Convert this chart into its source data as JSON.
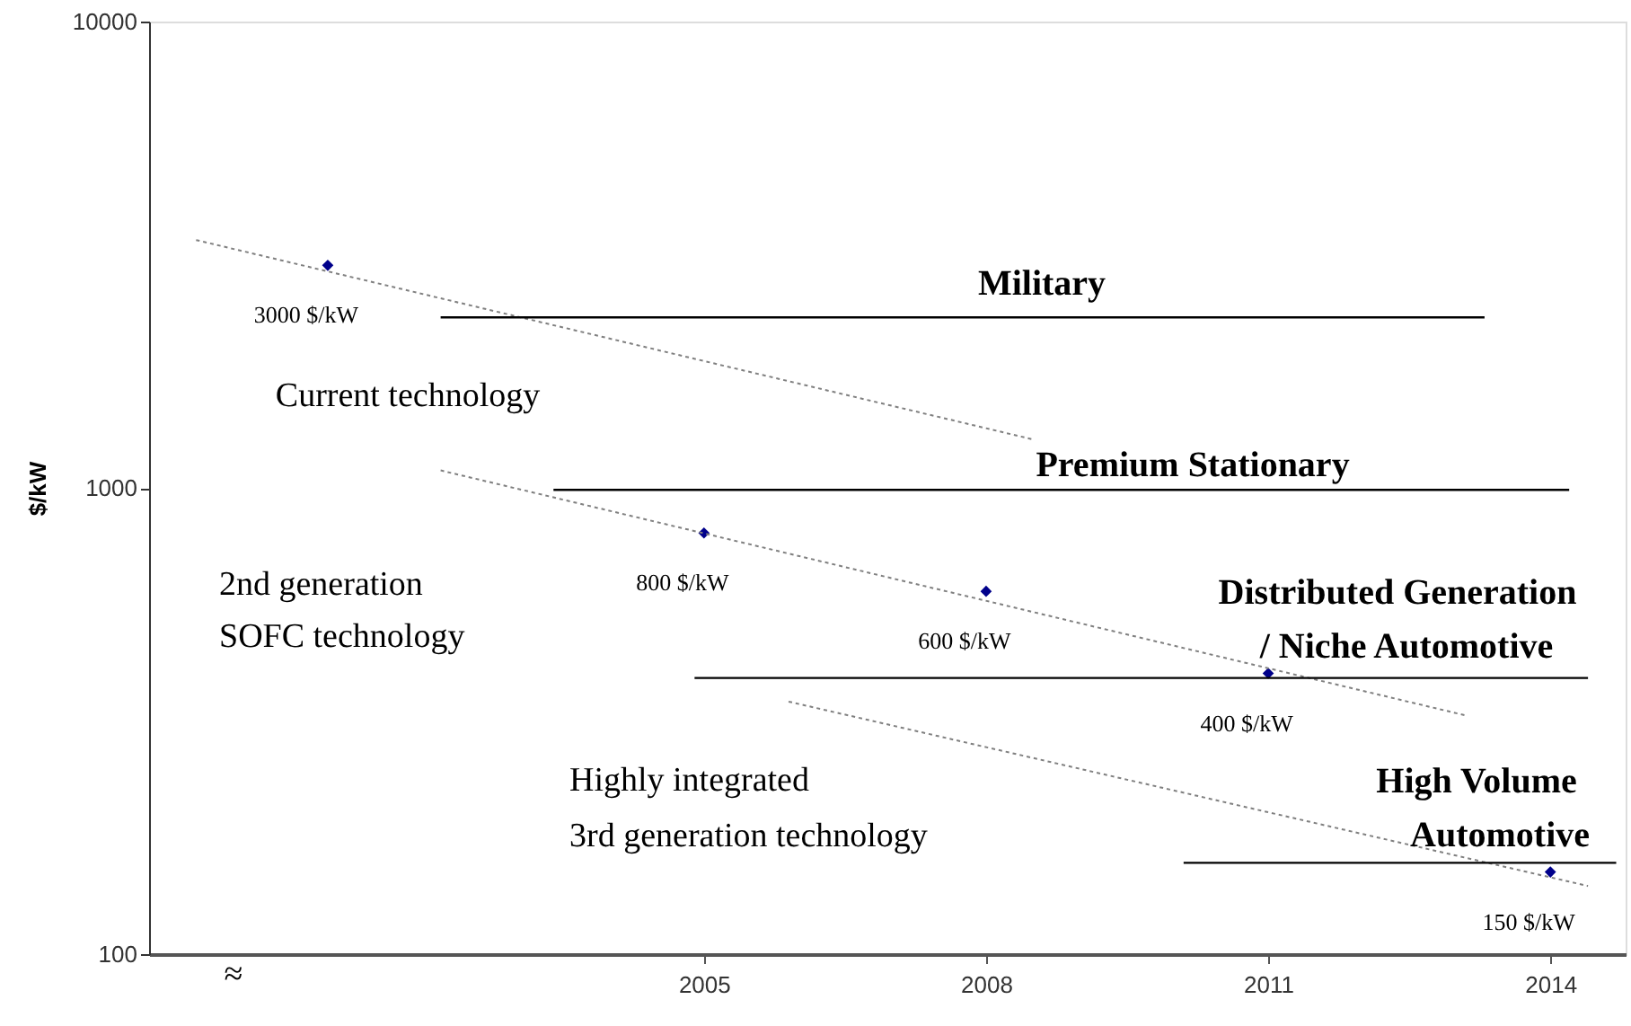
{
  "chart_data": {
    "type": "scatter",
    "ylabel": "$/kW",
    "log": "y",
    "grid": false,
    "xlim": [
      1999.1,
      2014.8
    ],
    "ylim": [
      100,
      10000
    ],
    "xticks": [
      2005,
      2008,
      2011,
      2014
    ],
    "yticks": [
      100,
      1000,
      10000
    ],
    "series": [
      {
        "type": "scatter",
        "marker": "diamond",
        "color": "#00008b",
        "x": [
          2001,
          2005,
          2008,
          2011,
          2014
        ],
        "values": [
          3000,
          800,
          600,
          400,
          150
        ],
        "value_labels": [
          "3000 $/kW",
          "800 $/kW",
          "600 $/kW",
          "400 $/kW",
          "150 $/kW"
        ]
      },
      {
        "type": "line",
        "line_style": "dotted",
        "color": "#808080",
        "x": [
          1999.6,
          2008.5
        ],
        "values": [
          3400,
          1270
        ]
      },
      {
        "type": "line",
        "line_style": "dotted",
        "color": "#808080",
        "x": [
          2002.2,
          2013.1
        ],
        "values": [
          1090,
          325
        ]
      },
      {
        "type": "line",
        "line_style": "dotted",
        "color": "#808080",
        "x": [
          2005.9,
          2014.4
        ],
        "values": [
          348,
          140
        ]
      },
      {
        "type": "line",
        "line_style": "solid",
        "color": "#000000",
        "x": [
          2002.2,
          2013.3
        ],
        "values": [
          2320,
          2320
        ]
      },
      {
        "type": "line",
        "line_style": "solid",
        "color": "#000000",
        "x": [
          2003.4,
          2014.2
        ],
        "values": [
          990,
          990
        ]
      },
      {
        "type": "line",
        "line_style": "solid",
        "color": "#000000",
        "x": [
          2004.9,
          2014.4
        ],
        "values": [
          391,
          391
        ]
      },
      {
        "type": "line",
        "line_style": "solid",
        "color": "#000000",
        "x": [
          2010.1,
          2014.7
        ],
        "values": [
          157,
          157
        ]
      }
    ],
    "annotations": [
      "Military",
      "Premium Stationary",
      "Distributed Generation",
      "/ Niche Automotive",
      "High Volume",
      "Automotive",
      "Current technology",
      "2nd generation",
      "SOFC technology",
      "Highly integrated",
      "3rd generation technology",
      "≈"
    ]
  }
}
